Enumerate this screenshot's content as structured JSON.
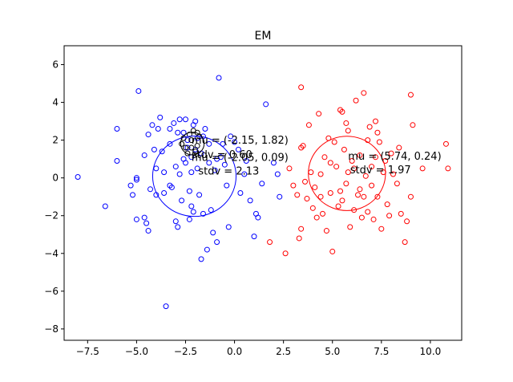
{
  "chart_data": {
    "type": "scatter",
    "title": "EM",
    "xlabel": "",
    "ylabel": "",
    "xlim": [
      -8.7,
      11.6
    ],
    "ylim": [
      -8.6,
      7.0
    ],
    "xticks": [
      -7.5,
      -5.0,
      -2.5,
      0.0,
      2.5,
      5.0,
      7.5,
      10.0
    ],
    "xtick_labels": [
      "−7.5",
      "−5.0",
      "−2.5",
      "0.0",
      "2.5",
      "5.0",
      "7.5",
      "10.0"
    ],
    "yticks": [
      -8,
      -6,
      -4,
      -2,
      0,
      2,
      4,
      6
    ],
    "ytick_labels": [
      "−8",
      "−6",
      "−4",
      "−2",
      "0",
      "2",
      "4",
      "6"
    ],
    "grid": false,
    "series": [
      {
        "color": "#0000ff",
        "marker": "open-circle",
        "points": [
          [
            -8.0,
            0.05
          ],
          [
            -6.6,
            -1.5
          ],
          [
            -6.0,
            0.9
          ],
          [
            -6.0,
            2.6
          ],
          [
            -5.3,
            -0.4
          ],
          [
            -5.2,
            -0.9
          ],
          [
            -5.0,
            -0.1
          ],
          [
            -5.0,
            0.0
          ],
          [
            -5.0,
            -2.2
          ],
          [
            -4.9,
            4.6
          ],
          [
            -4.6,
            1.2
          ],
          [
            -4.6,
            -2.1
          ],
          [
            -4.5,
            -2.4
          ],
          [
            -4.4,
            -2.8
          ],
          [
            -4.4,
            2.3
          ],
          [
            -4.3,
            -0.6
          ],
          [
            -4.2,
            2.8
          ],
          [
            -4.1,
            1.5
          ],
          [
            -4.0,
            -0.9
          ],
          [
            -3.9,
            2.6
          ],
          [
            -3.8,
            3.2
          ],
          [
            -3.7,
            1.4
          ],
          [
            -3.6,
            -0.8
          ],
          [
            -3.5,
            -6.8
          ],
          [
            -3.3,
            -0.4
          ],
          [
            -3.2,
            -0.5
          ],
          [
            -3.1,
            2.9
          ],
          [
            -3.0,
            -2.3
          ],
          [
            -2.9,
            -2.6
          ],
          [
            -2.8,
            3.1
          ],
          [
            -2.7,
            -1.2
          ],
          [
            -2.6,
            2.4
          ],
          [
            -2.5,
            3.1
          ],
          [
            -2.4,
            2.0
          ],
          [
            -2.3,
            -0.7
          ],
          [
            -2.3,
            -2.2
          ],
          [
            -2.2,
            0.3
          ],
          [
            -2.2,
            -1.5
          ],
          [
            -2.1,
            -1.8
          ],
          [
            -2.0,
            3.0
          ],
          [
            -1.9,
            0.5
          ],
          [
            -1.8,
            -0.9
          ],
          [
            -1.7,
            -4.3
          ],
          [
            -1.6,
            -1.9
          ],
          [
            -1.5,
            2.6
          ],
          [
            -1.4,
            -3.8
          ],
          [
            -1.3,
            0.8
          ],
          [
            -1.2,
            -1.7
          ],
          [
            -1.1,
            -2.9
          ],
          [
            -1.0,
            0.4
          ],
          [
            -0.9,
            -3.4
          ],
          [
            -0.8,
            5.3
          ],
          [
            -0.7,
            1.1
          ],
          [
            -0.6,
            1.8
          ],
          [
            -0.5,
            0.7
          ],
          [
            -0.4,
            -0.4
          ],
          [
            -0.3,
            -2.6
          ],
          [
            -0.2,
            2.2
          ],
          [
            0.0,
            1.9
          ],
          [
            0.2,
            1.5
          ],
          [
            0.3,
            -0.8
          ],
          [
            0.5,
            0.2
          ],
          [
            0.6,
            0.9
          ],
          [
            0.8,
            -1.2
          ],
          [
            1.0,
            -3.1
          ],
          [
            1.1,
            -1.9
          ],
          [
            1.2,
            -2.1
          ],
          [
            1.4,
            -0.3
          ],
          [
            1.6,
            3.9
          ],
          [
            2.0,
            0.8
          ],
          [
            2.2,
            0.2
          ],
          [
            2.3,
            -1.0
          ],
          [
            -2.0,
            1.5
          ],
          [
            -2.1,
            2.8
          ],
          [
            -2.4,
            1.6
          ],
          [
            -2.6,
            1.0
          ],
          [
            -3.3,
            1.8
          ],
          [
            -2.8,
            0.2
          ],
          [
            -3.0,
            0.6
          ],
          [
            -1.7,
            1.3
          ],
          [
            -2.2,
            1.1
          ],
          [
            -1.9,
            2.1
          ],
          [
            -2.5,
            0.8
          ],
          [
            -3.6,
            0.3
          ],
          [
            -4.0,
            0.5
          ],
          [
            -1.3,
            1.8
          ],
          [
            -0.9,
            1.0
          ],
          [
            -2.9,
            2.4
          ],
          [
            -3.3,
            2.6
          ],
          [
            -1.6,
            2.2
          ]
        ]
      },
      {
        "color": "#ff0000",
        "marker": "open-circle",
        "points": [
          [
            1.8,
            -3.4
          ],
          [
            2.6,
            -4.0
          ],
          [
            2.8,
            0.5
          ],
          [
            3.0,
            -0.4
          ],
          [
            3.2,
            -0.9
          ],
          [
            3.3,
            -3.2
          ],
          [
            3.4,
            -2.7
          ],
          [
            3.4,
            1.6
          ],
          [
            3.4,
            4.8
          ],
          [
            3.5,
            1.7
          ],
          [
            3.6,
            -0.2
          ],
          [
            3.7,
            -1.1
          ],
          [
            3.8,
            2.8
          ],
          [
            3.9,
            0.3
          ],
          [
            4.0,
            -1.6
          ],
          [
            4.1,
            -0.5
          ],
          [
            4.2,
            -2.1
          ],
          [
            4.3,
            3.4
          ],
          [
            4.4,
            0.2
          ],
          [
            4.5,
            -1.9
          ],
          [
            4.6,
            1.1
          ],
          [
            4.7,
            -2.8
          ],
          [
            4.8,
            2.1
          ],
          [
            4.9,
            -0.8
          ],
          [
            5.0,
            -3.9
          ],
          [
            5.1,
            1.9
          ],
          [
            5.2,
            0.6
          ],
          [
            5.3,
            -1.5
          ],
          [
            5.4,
            3.6
          ],
          [
            5.5,
            3.5
          ],
          [
            5.5,
            -1.2
          ],
          [
            5.6,
            1.5
          ],
          [
            5.7,
            -0.3
          ],
          [
            5.8,
            2.5
          ],
          [
            5.9,
            -2.6
          ],
          [
            6.0,
            0.9
          ],
          [
            6.1,
            -1.7
          ],
          [
            6.2,
            4.1
          ],
          [
            6.3,
            -0.9
          ],
          [
            6.4,
            1.2
          ],
          [
            6.5,
            -2.1
          ],
          [
            6.6,
            4.5
          ],
          [
            6.7,
            0.1
          ],
          [
            6.8,
            -1.8
          ],
          [
            6.9,
            2.7
          ],
          [
            7.0,
            0.6
          ],
          [
            7.1,
            -2.2
          ],
          [
            7.2,
            3.0
          ],
          [
            7.3,
            -1.0
          ],
          [
            7.4,
            1.9
          ],
          [
            7.5,
            -2.7
          ],
          [
            7.6,
            0.3
          ],
          [
            7.8,
            -1.4
          ],
          [
            7.9,
            -2.0
          ],
          [
            8.0,
            1.3
          ],
          [
            8.1,
            0.2
          ],
          [
            8.3,
            -0.3
          ],
          [
            8.5,
            -1.9
          ],
          [
            8.7,
            -3.4
          ],
          [
            8.8,
            -2.3
          ],
          [
            9.0,
            4.4
          ],
          [
            9.0,
            -1.0
          ],
          [
            9.1,
            2.8
          ],
          [
            9.6,
            0.5
          ],
          [
            10.8,
            1.8
          ],
          [
            10.9,
            0.5
          ],
          [
            7.0,
            -0.4
          ],
          [
            7.2,
            1.1
          ],
          [
            5.8,
            0.3
          ],
          [
            6.1,
            0.5
          ],
          [
            5.7,
            2.9
          ],
          [
            6.4,
            -0.6
          ],
          [
            4.9,
            0.8
          ],
          [
            6.8,
            2.0
          ],
          [
            5.4,
            -0.7
          ],
          [
            7.7,
            0.9
          ],
          [
            4.4,
            -1.0
          ],
          [
            6.6,
            -1.0
          ],
          [
            8.4,
            1.6
          ],
          [
            7.3,
            2.4
          ]
        ]
      }
    ],
    "circles": [
      {
        "center": [
          -2.05,
          0.09
        ],
        "radius": 2.13,
        "color": "#0000ff"
      },
      {
        "center": [
          5.74,
          0.24
        ],
        "radius": 1.97,
        "color": "#ff0000"
      }
    ],
    "annotations": [
      {
        "text": "mu = (-2.15, 1.82)",
        "at": [
          -2.2,
          1.82
        ]
      },
      {
        "text": "stdv = 0.60",
        "at": [
          -2.2,
          1.05
        ]
      },
      {
        "text": "mu = (-2.05, 0.09)",
        "at": [
          -2.2,
          0.9
        ]
      },
      {
        "text": "stdv = 2.13",
        "at": [
          -1.85,
          0.17
        ]
      },
      {
        "text": "mu = (5.74, 0.24)",
        "at": [
          5.8,
          0.97
        ]
      },
      {
        "text": "stdv = 1.97",
        "at": [
          5.9,
          0.25
        ]
      }
    ],
    "extra_component": {
      "center": [
        -2.15,
        1.82
      ],
      "radius": 0.6,
      "color": "#000000",
      "points": [
        [
          -2.5,
          1.6
        ],
        [
          -2.2,
          2.0
        ],
        [
          -1.9,
          1.7
        ],
        [
          -2.3,
          2.3
        ],
        [
          -2.0,
          1.4
        ],
        [
          -2.6,
          2.1
        ],
        [
          -1.8,
          2.2
        ],
        [
          -2.4,
          1.3
        ],
        [
          -2.1,
          2.5
        ],
        [
          -2.7,
          1.8
        ],
        [
          -2.2,
          1.6
        ],
        [
          -1.9,
          2.4
        ]
      ]
    }
  }
}
